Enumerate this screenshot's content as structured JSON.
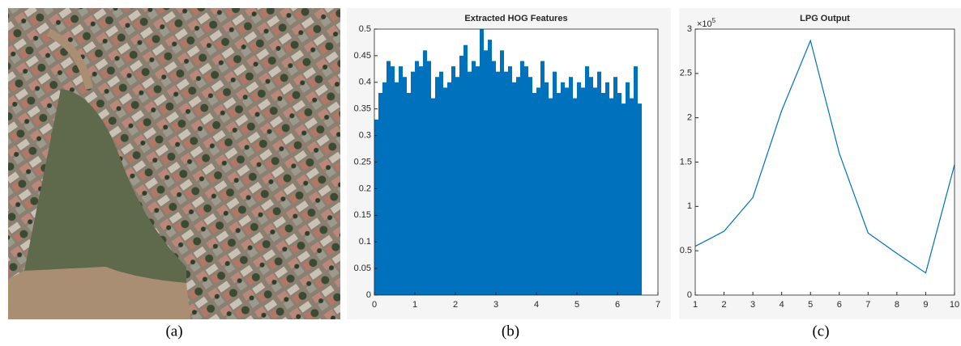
{
  "captions": [
    "(a)",
    "(b)",
    "(c)"
  ],
  "chart_data": [
    {
      "type": "bar",
      "title": "Extracted HOG Features",
      "color": "#0072bd",
      "x": [
        0,
        0.1,
        0.2,
        0.3,
        0.4,
        0.5,
        0.6,
        0.7,
        0.8,
        0.9,
        1.0,
        1.1,
        1.2,
        1.3,
        1.4,
        1.5,
        1.6,
        1.7,
        1.8,
        1.9,
        2.0,
        2.1,
        2.2,
        2.3,
        2.4,
        2.5,
        2.6,
        2.7,
        2.8,
        2.9,
        3.0,
        3.1,
        3.2,
        3.3,
        3.4,
        3.5,
        3.6,
        3.7,
        3.8,
        3.9,
        4.0,
        4.1,
        4.2,
        4.3,
        4.4,
        4.5,
        4.6,
        4.7,
        4.8,
        4.9,
        5.0,
        5.1,
        5.2,
        5.3,
        5.4,
        5.5,
        5.6,
        5.7,
        5.8,
        5.9,
        6.0,
        6.1,
        6.2,
        6.3,
        6.4,
        6.5
      ],
      "values": [
        0.33,
        0.38,
        0.4,
        0.44,
        0.43,
        0.4,
        0.43,
        0.41,
        0.38,
        0.42,
        0.44,
        0.43,
        0.46,
        0.44,
        0.37,
        0.41,
        0.42,
        0.39,
        0.4,
        0.43,
        0.41,
        0.45,
        0.47,
        0.42,
        0.44,
        0.43,
        0.5,
        0.46,
        0.48,
        0.44,
        0.42,
        0.46,
        0.42,
        0.43,
        0.4,
        0.41,
        0.44,
        0.43,
        0.41,
        0.38,
        0.39,
        0.44,
        0.4,
        0.37,
        0.42,
        0.38,
        0.4,
        0.39,
        0.41,
        0.37,
        0.4,
        0.39,
        0.43,
        0.41,
        0.39,
        0.42,
        0.38,
        0.4,
        0.37,
        0.41,
        0.38,
        0.36,
        0.4,
        0.37,
        0.43,
        0.36
      ],
      "xlim": [
        0,
        7
      ],
      "xticks": [
        0,
        1,
        2,
        3,
        4,
        5,
        6,
        7
      ],
      "ylim": [
        0,
        0.5
      ],
      "yticks": [
        0,
        0.05,
        0.1,
        0.15,
        0.2,
        0.25,
        0.3,
        0.35,
        0.4,
        0.45,
        0.5
      ]
    },
    {
      "type": "line",
      "title": "LPG Output",
      "color": "#0072bd",
      "y_scale_base": "×10",
      "y_scale_exponent": "5",
      "x": [
        1,
        2,
        3,
        4,
        5,
        6,
        7,
        8,
        9,
        10
      ],
      "values": [
        0.55,
        0.72,
        1.1,
        2.08,
        2.87,
        1.6,
        0.7,
        0.47,
        0.25,
        1.47
      ],
      "xlim": [
        1,
        10
      ],
      "xticks": [
        1,
        2,
        3,
        4,
        5,
        6,
        7,
        8,
        9,
        10
      ],
      "ylim": [
        0,
        3
      ],
      "yticks": [
        0,
        0.5,
        1,
        1.5,
        2,
        2.5,
        3
      ]
    }
  ]
}
